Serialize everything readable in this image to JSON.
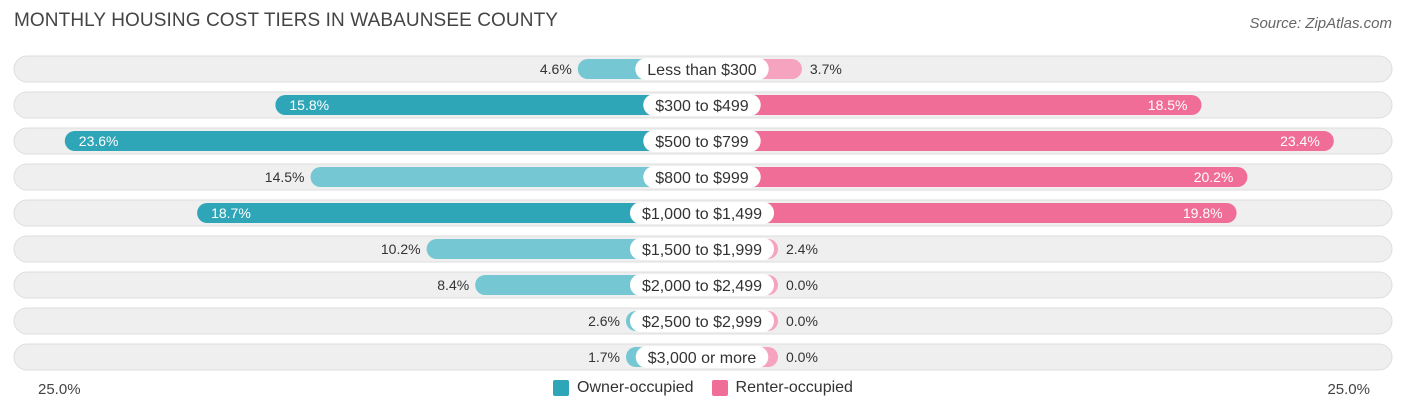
{
  "chart_data": {
    "type": "bar",
    "orientation": "horizontal-diverging",
    "title": "MONTHLY HOUSING COST TIERS IN WABAUNSEE COUNTY",
    "source": "Source: ZipAtlas.com",
    "categories": [
      "Less than $300",
      "$300 to $499",
      "$500 to $799",
      "$800 to $999",
      "$1,000 to $1,499",
      "$1,500 to $1,999",
      "$2,000 to $2,499",
      "$2,500 to $2,999",
      "$3,000 or more"
    ],
    "series": [
      {
        "name": "Owner-occupied",
        "values": [
          4.6,
          15.8,
          23.6,
          14.5,
          18.7,
          10.2,
          8.4,
          2.6,
          1.7
        ],
        "labels": [
          "4.6%",
          "15.8%",
          "23.6%",
          "14.5%",
          "18.7%",
          "10.2%",
          "8.4%",
          "2.6%",
          "1.7%"
        ]
      },
      {
        "name": "Renter-occupied",
        "values": [
          3.7,
          18.5,
          23.4,
          20.2,
          19.8,
          2.4,
          0.0,
          0.0,
          0.0
        ],
        "labels": [
          "3.7%",
          "18.5%",
          "23.4%",
          "20.2%",
          "19.8%",
          "2.4%",
          "0.0%",
          "0.0%",
          "0.0%"
        ]
      }
    ],
    "xlim": [
      -25,
      25
    ],
    "axis_labels": {
      "left": "25.0%",
      "right": "25.0%"
    },
    "legend_position": "bottom-center"
  },
  "colors": {
    "owner_dark": "#2fa6b8",
    "owner_light": "#74c7d3",
    "renter_dark": "#ef6d97",
    "renter_light": "#f5a3bf",
    "row_background": "#efefef",
    "row_border": "#dedede"
  }
}
